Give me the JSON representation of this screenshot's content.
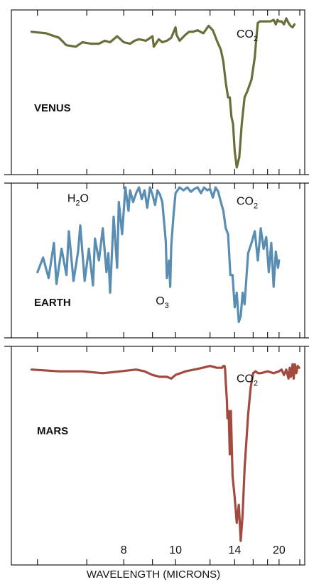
{
  "chart_data": {
    "type": "line",
    "xlabel": "WAVELENGTH (MICRONS)",
    "x_ticks": [
      "8",
      "10",
      "14",
      "20"
    ],
    "x_tick_values": [
      8,
      10,
      14,
      20
    ],
    "x_minor_ticks": [
      6,
      7,
      9,
      12,
      16,
      18,
      25
    ],
    "xlim": [
      5.8,
      25
    ],
    "x_scale": "reciprocal",
    "ylim": [
      0,
      1
    ],
    "grid": false,
    "panels": [
      {
        "label": "VENUS",
        "color": "#6b6e3a",
        "annotations": [
          {
            "text": "CO",
            "sub": "2",
            "x": 15.3,
            "y": 0.88
          }
        ],
        "x": [
          5.9,
          6.15,
          6.4,
          6.55,
          6.75,
          6.9,
          7.1,
          7.3,
          7.45,
          7.6,
          7.8,
          8.0,
          8.2,
          8.35,
          8.5,
          8.75,
          9.0,
          9.05,
          9.25,
          9.4,
          9.6,
          9.8,
          10.0,
          10.05,
          10.2,
          10.5,
          10.7,
          10.9,
          11.2,
          11.55,
          11.9,
          12.2,
          12.5,
          12.6,
          12.8,
          13.0,
          13.2,
          13.4,
          13.55,
          13.7,
          13.85,
          14.0,
          14.2,
          14.45,
          14.7,
          15.0,
          15.3,
          15.8,
          16.2,
          16.4,
          16.6,
          16.9,
          17.5,
          18.5,
          19.0,
          19.4,
          19.7,
          20.0,
          20.5,
          21.0,
          21.5,
          22.0,
          22.5,
          23.0,
          23.5
        ],
        "y": [
          0.92,
          0.91,
          0.88,
          0.83,
          0.82,
          0.85,
          0.84,
          0.84,
          0.86,
          0.85,
          0.89,
          0.85,
          0.84,
          0.86,
          0.87,
          0.86,
          0.89,
          0.82,
          0.87,
          0.85,
          0.86,
          0.88,
          0.95,
          0.9,
          0.86,
          0.9,
          0.92,
          0.92,
          0.93,
          0.91,
          0.96,
          0.93,
          0.86,
          0.84,
          0.8,
          0.72,
          0.58,
          0.48,
          0.48,
          0.35,
          0.3,
          0.12,
          0.01,
          0.08,
          0.3,
          0.48,
          0.52,
          0.6,
          0.75,
          0.88,
          0.98,
          0.99,
          0.99,
          0.99,
          1.0,
          0.97,
          1.0,
          0.99,
          0.99,
          0.97,
          1.01,
          0.98,
          0.96,
          0.95,
          0.97
        ]
      },
      {
        "label": "EARTH",
        "color": "#5a8db2",
        "annotations": [
          {
            "text": "H",
            "sub": "2",
            "after": "O",
            "x": 6.8,
            "y": 0.9
          },
          {
            "text": "O",
            "sub": "3",
            "x": 9.4,
            "y": 0.2
          },
          {
            "text": "CO",
            "sub": "2",
            "x": 15.3,
            "y": 0.88
          }
        ],
        "x": [
          6.0,
          6.1,
          6.2,
          6.3,
          6.35,
          6.45,
          6.55,
          6.6,
          6.7,
          6.8,
          6.85,
          6.95,
          7.05,
          7.15,
          7.2,
          7.3,
          7.4,
          7.5,
          7.55,
          7.6,
          7.7,
          7.8,
          7.85,
          7.95,
          8.05,
          8.15,
          8.2,
          8.3,
          8.4,
          8.5,
          8.6,
          8.7,
          8.8,
          8.9,
          9.0,
          9.1,
          9.2,
          9.3,
          9.4,
          9.5,
          9.55,
          9.6,
          9.7,
          9.75,
          9.8,
          9.9,
          10.0,
          10.2,
          10.4,
          10.6,
          10.8,
          11.0,
          11.2,
          11.4,
          11.6,
          11.8,
          12.0,
          12.2,
          12.4,
          12.6,
          12.8,
          13.0,
          13.2,
          13.4,
          13.6,
          13.8,
          14.0,
          14.2,
          14.4,
          14.6,
          14.8,
          15.0,
          15.4,
          15.8,
          16.2,
          16.6,
          17.0,
          17.4,
          17.8,
          18.2,
          18.6,
          19.0,
          19.4,
          19.8,
          20.0
        ],
        "y": [
          0.42,
          0.52,
          0.38,
          0.62,
          0.34,
          0.58,
          0.4,
          0.7,
          0.36,
          0.56,
          0.74,
          0.36,
          0.58,
          0.33,
          0.65,
          0.5,
          0.72,
          0.42,
          0.55,
          0.28,
          0.8,
          0.45,
          0.9,
          0.68,
          1.0,
          0.84,
          0.98,
          0.9,
          0.96,
          1.0,
          0.92,
          0.98,
          0.86,
          1.0,
          0.95,
          0.88,
          0.98,
          0.95,
          0.9,
          0.72,
          0.63,
          0.38,
          0.5,
          0.32,
          0.6,
          0.8,
          0.96,
          1.0,
          0.98,
          1.0,
          0.97,
          0.99,
          1.0,
          0.96,
          1.0,
          0.98,
          0.99,
          0.93,
          1.0,
          0.97,
          0.9,
          0.84,
          0.72,
          0.68,
          0.4,
          0.4,
          0.18,
          0.28,
          0.08,
          0.12,
          0.28,
          0.2,
          0.55,
          0.62,
          0.7,
          0.5,
          0.72,
          0.58,
          0.66,
          0.42,
          0.62,
          0.32,
          0.56,
          0.45,
          0.5
        ]
      },
      {
        "label": "MARS",
        "color": "#a34a3f",
        "annotations": [
          {
            "text": "CO",
            "sub": "2",
            "x": 15.3,
            "y": 0.88
          }
        ],
        "x": [
          5.9,
          6.4,
          6.9,
          7.4,
          7.9,
          8.4,
          8.7,
          9.0,
          9.3,
          9.6,
          9.8,
          10.0,
          10.5,
          11.0,
          11.5,
          12.0,
          12.5,
          12.7,
          12.8,
          12.9,
          13.0,
          13.1,
          13.15,
          13.2,
          13.3,
          13.35,
          13.45,
          13.55,
          13.65,
          13.8,
          14.0,
          14.2,
          14.4,
          14.6,
          14.8,
          15.0,
          15.2,
          15.4,
          15.7,
          16.0,
          16.3,
          16.6,
          17.0,
          18.0,
          19.0,
          20.0,
          20.5,
          21.0,
          21.5,
          22.0,
          22.3,
          22.6,
          23.0,
          23.3,
          23.6,
          24.0,
          24.4,
          24.8
        ],
        "y": [
          0.95,
          0.94,
          0.94,
          0.93,
          0.94,
          0.95,
          0.94,
          0.92,
          0.91,
          0.91,
          0.9,
          0.92,
          0.94,
          0.95,
          0.96,
          0.97,
          0.96,
          0.96,
          0.96,
          0.96,
          0.97,
          0.97,
          0.95,
          0.88,
          0.78,
          0.68,
          0.72,
          0.48,
          0.72,
          0.36,
          0.24,
          0.1,
          0.2,
          0.0,
          0.15,
          0.4,
          0.55,
          0.7,
          0.85,
          0.93,
          0.94,
          0.93,
          0.93,
          0.94,
          0.93,
          0.94,
          0.95,
          0.92,
          0.95,
          0.9,
          0.96,
          0.91,
          0.98,
          0.9,
          0.98,
          0.93,
          0.97,
          0.96
        ]
      }
    ]
  }
}
